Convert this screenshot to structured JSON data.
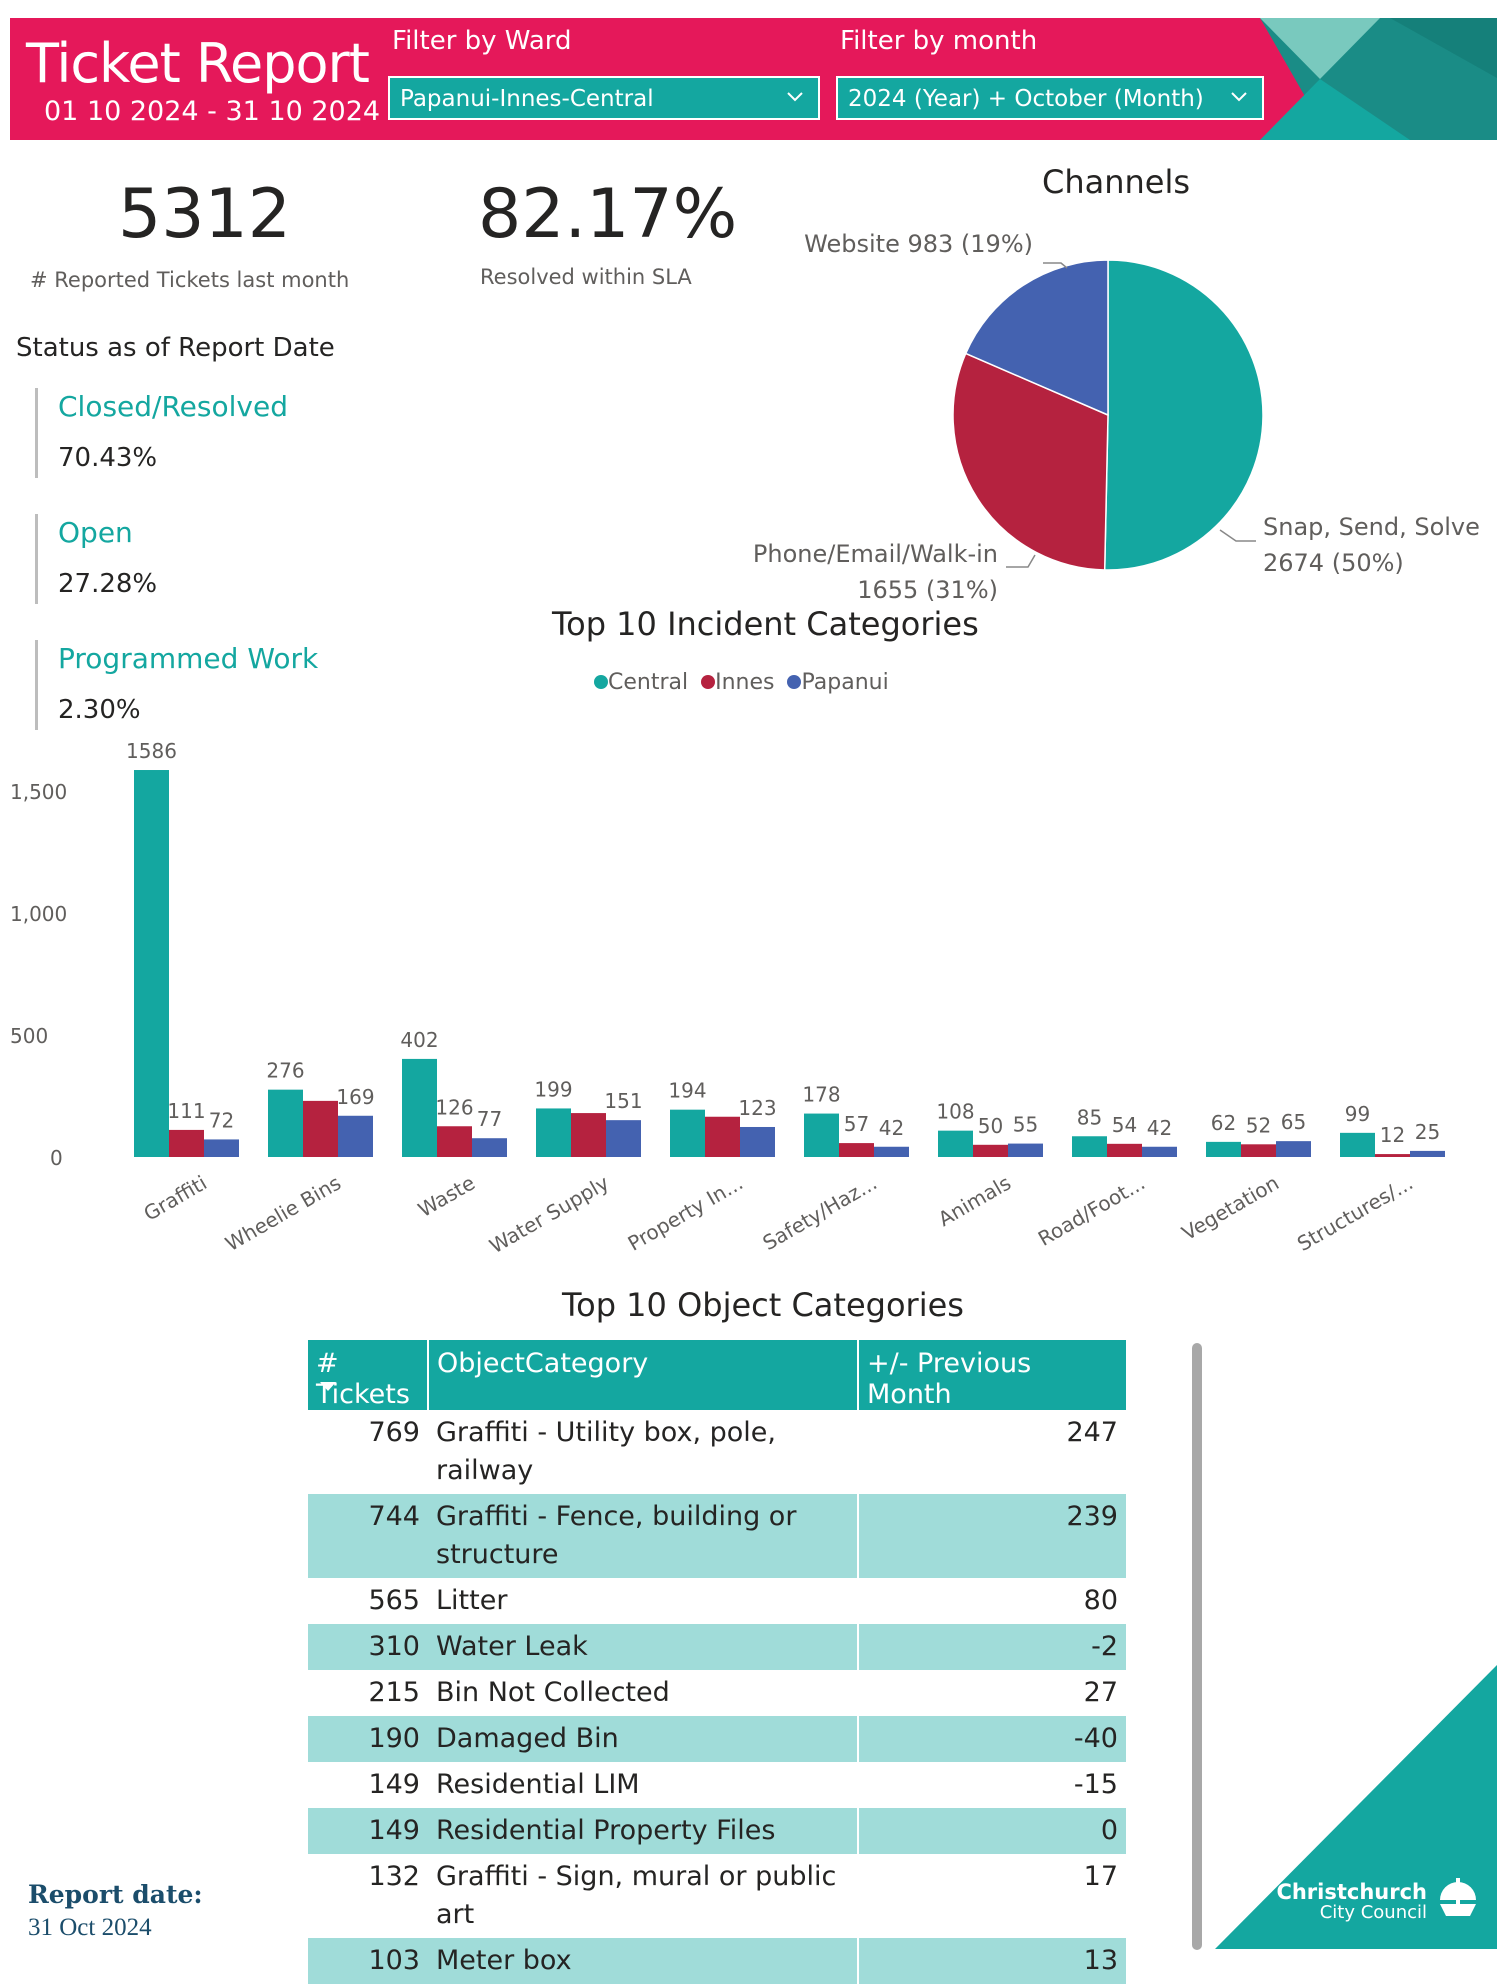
{
  "header": {
    "title": "Ticket Report",
    "date_range": "01 10 2024 - 31 10 2024",
    "ward_filter_label": "Filter by Ward",
    "ward_filter_value": "Papanui-Innes-Central",
    "month_filter_label": "Filter by month",
    "month_filter_value": "2024 (Year) + October (Month)"
  },
  "kpis": {
    "reported_value": "5312",
    "reported_label": "# Reported Tickets last month",
    "sla_value": "82.17%",
    "sla_label": "Resolved within SLA"
  },
  "status": {
    "title": "Status as of Report Date",
    "items": [
      {
        "name": "Closed/Resolved",
        "value": "70.43%"
      },
      {
        "name": "Open",
        "value": "27.28%"
      },
      {
        "name": "Programmed Work",
        "value": "2.30%"
      }
    ]
  },
  "colors": {
    "teal": "#14a7a0",
    "red": "#b5223f",
    "blue": "#4462b0",
    "header_pink": "#e5185a",
    "light_teal": "#a0dcd9"
  },
  "chart_data": [
    {
      "type": "pie",
      "title": "Channels",
      "slices": [
        {
          "label": "Snap, Send, Solve",
          "value": 2674,
          "display": "2674 (50%)",
          "color": "#14a7a0"
        },
        {
          "label": "Phone/Email/Walk-in",
          "value": 1655,
          "display": "1655 (31%)",
          "color": "#b5223f"
        },
        {
          "label": "Website",
          "value": 983,
          "display": "983 (19%)",
          "color": "#4462b0"
        }
      ]
    },
    {
      "type": "bar",
      "title": "Top 10 Incident Categories",
      "categories": [
        "Graffiti",
        "Wheelie Bins",
        "Waste",
        "Water Supply",
        "Property In...",
        "Safety/Haz...",
        "Animals",
        "Road/Foot...",
        "Vegetation",
        "Structures/..."
      ],
      "series": [
        {
          "name": "Central",
          "color": "#14a7a0",
          "values": [
            1586,
            276,
            402,
            199,
            194,
            178,
            108,
            85,
            62,
            99
          ],
          "labels": [
            "1586",
            "276",
            "402",
            "199",
            "194",
            "178",
            "108",
            "85",
            "62",
            "99"
          ]
        },
        {
          "name": "Innes",
          "color": "#b5223f",
          "values": [
            111,
            230,
            126,
            180,
            165,
            57,
            50,
            54,
            52,
            12
          ],
          "labels": [
            "111",
            "",
            "126",
            "",
            "",
            "57",
            "50",
            "54",
            "52",
            "12"
          ]
        },
        {
          "name": "Papanui",
          "color": "#4462b0",
          "values": [
            72,
            169,
            77,
            151,
            123,
            42,
            55,
            42,
            65,
            25
          ],
          "labels": [
            "72",
            "169",
            "77",
            "151",
            "123",
            "42",
            "55",
            "42",
            "65",
            "25"
          ]
        }
      ],
      "ylim": [
        0,
        1650
      ],
      "yticks": [
        0,
        500,
        1000,
        1500
      ],
      "ytick_labels": [
        "0",
        "500",
        "1,000",
        "1,500"
      ]
    }
  ],
  "table": {
    "title": "Top 10 Object Categories",
    "columns": [
      "# Tickets",
      "ObjectCategory",
      "+/- Previous Month"
    ],
    "rows": [
      {
        "tickets": "769",
        "category": "Graffiti - Utility box, pole, railway",
        "change": "247"
      },
      {
        "tickets": "744",
        "category": "Graffiti - Fence, building or structure",
        "change": "239"
      },
      {
        "tickets": "565",
        "category": "Litter",
        "change": "80"
      },
      {
        "tickets": "310",
        "category": "Water Leak",
        "change": "-2"
      },
      {
        "tickets": "215",
        "category": "Bin Not Collected",
        "change": "27"
      },
      {
        "tickets": "190",
        "category": "Damaged Bin",
        "change": "-40"
      },
      {
        "tickets": "149",
        "category": "Residential LIM",
        "change": "-15"
      },
      {
        "tickets": "149",
        "category": "Residential Property Files",
        "change": "0"
      },
      {
        "tickets": "132",
        "category": "Graffiti - Sign, mural or public art",
        "change": "17"
      },
      {
        "tickets": "103",
        "category": "Meter box",
        "change": "13"
      }
    ]
  },
  "footer": {
    "report_date_label": "Report date:",
    "report_date_value": "31 Oct 2024",
    "logo_line1": "Christchurch",
    "logo_line2": "City Council"
  }
}
